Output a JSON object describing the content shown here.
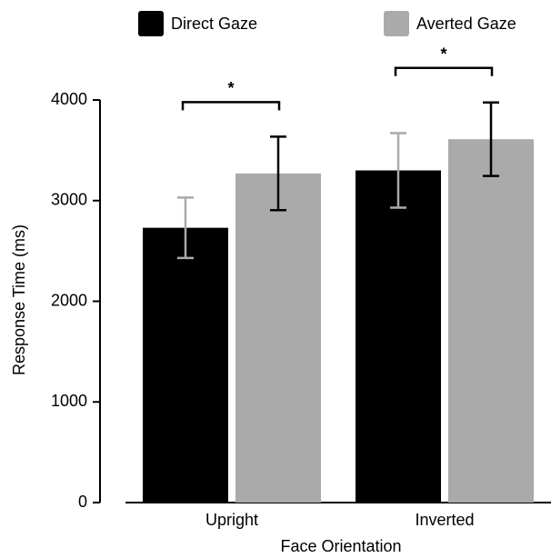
{
  "chart_data": {
    "type": "bar",
    "categories": [
      "Upright",
      "Inverted"
    ],
    "series": [
      {
        "name": "Direct Gaze",
        "color": "#000000",
        "error_color": "#aaaaaa",
        "values": [
          2730,
          3300
        ],
        "errors": [
          300,
          370
        ]
      },
      {
        "name": "Averted Gaze",
        "color": "#aaaaaa",
        "error_color": "#000000",
        "values": [
          3270,
          3610
        ],
        "errors": [
          365,
          365
        ]
      }
    ],
    "annotations": [
      "*",
      "*"
    ],
    "x_label": "Face Orientation",
    "y_label": "Response Time (ms)",
    "ylim": [
      0,
      4000
    ],
    "yticks": [
      0,
      1000,
      2000,
      3000,
      4000
    ],
    "grid": false,
    "legend": "top"
  }
}
